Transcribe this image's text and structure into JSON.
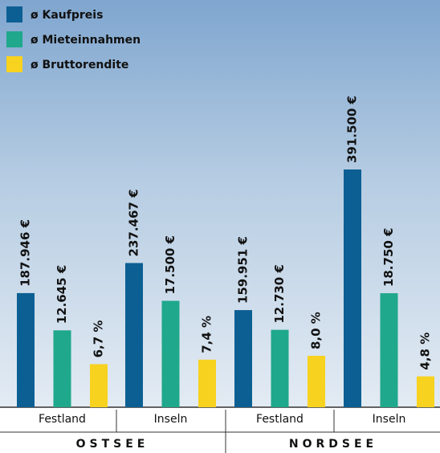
{
  "chart_data": {
    "type": "bar",
    "categories": [
      "Festland",
      "Inseln",
      "Festland",
      "Inseln"
    ],
    "groups": [
      "OSTSEE",
      "NORDSEE"
    ],
    "series": [
      {
        "name": "ø Kaufpreis",
        "color": "#0c5f93",
        "values": [
          187946,
          237467,
          159951,
          391500
        ],
        "value_labels": [
          "187.946 €",
          "237.467 €",
          "159.951 €",
          "391.500 €"
        ]
      },
      {
        "name": "ø Mieteinnahmen",
        "color": "#1fa88b",
        "values": [
          12645,
          17500,
          12730,
          18750
        ],
        "value_labels": [
          "12.645 €",
          "17.500 €",
          "12.730 €",
          "18.750 €"
        ]
      },
      {
        "name": "ø Bruttorendite",
        "color": "#f7d21f",
        "values": [
          6.7,
          7.4,
          8.0,
          4.8
        ],
        "value_labels": [
          "6,7 %",
          "7,4 %",
          "8,0 %",
          "4,8 %"
        ]
      }
    ]
  }
}
